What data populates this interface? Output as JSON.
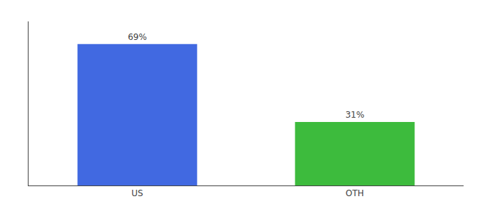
{
  "chart_data": {
    "type": "bar",
    "categories": [
      "US",
      "OTH"
    ],
    "values": [
      69,
      31
    ],
    "value_labels": [
      "69%",
      "31%"
    ],
    "colors": [
      "#4169e1",
      "#3dbb3d"
    ],
    "ylim": [
      0,
      80
    ],
    "data_labels": true,
    "tick_labels": "x",
    "grid": false
  }
}
